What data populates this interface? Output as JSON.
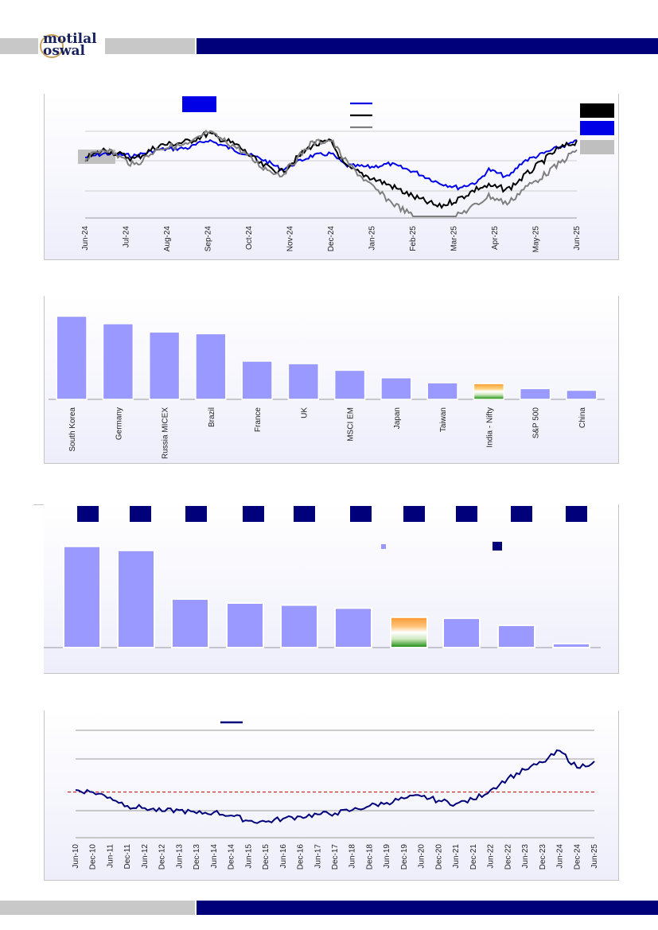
{
  "brand": {
    "logo_line1": "motilal",
    "logo_line2": "oswal",
    "primary_color": "#00007a",
    "grey": "#c8c8c8"
  },
  "charts": {
    "line1": {
      "type": "line",
      "x_ticks": [
        "Jun-24",
        "Jul-24",
        "Aug-24",
        "Sep-24",
        "Oct-24",
        "Nov-24",
        "Dec-24",
        "Jan-25",
        "Feb-25",
        "Mar-25",
        "Apr-25",
        "May-25",
        "Jun-25"
      ],
      "colors": {
        "s1": "#0000e6",
        "s2": "#000000",
        "s3": "#7f7f7f"
      }
    },
    "bars1": {
      "type": "bar",
      "categories": [
        "South Korea",
        "Germany",
        "Russia MICEX",
        "Brazil",
        "France",
        "UK",
        "MSCI EM",
        "Japan",
        "Taiwan",
        "India - Nifty",
        "S&P 500",
        "China"
      ],
      "values": [
        100,
        91,
        81,
        79,
        46,
        43,
        35,
        26,
        20,
        19,
        13,
        11
      ],
      "ylim": [
        0,
        110
      ],
      "highlight": "India - Nifty"
    },
    "bars2": {
      "type": "bar",
      "values": [
        100,
        96,
        48,
        44,
        42,
        39,
        30,
        29,
        22,
        4
      ],
      "ylim": [
        0,
        110
      ],
      "highlight_index": 6,
      "bar_color": "#9999ff"
    },
    "line2": {
      "type": "line",
      "x_ticks": [
        "Jun-10",
        "Dec-10",
        "Jun-11",
        "Dec-11",
        "Jun-12",
        "Dec-12",
        "Jun-13",
        "Dec-13",
        "Jun-14",
        "Dec-14",
        "Jun-15",
        "Dec-15",
        "Jun-16",
        "Dec-16",
        "Jun-17",
        "Dec-17",
        "Jun-18",
        "Dec-18",
        "Jun-19",
        "Dec-19",
        "Jun-20",
        "Dec-20",
        "Jun-21",
        "Dec-21",
        "Jun-22",
        "Dec-22",
        "Jun-23",
        "Dec-23",
        "Jun-24",
        "Dec-24",
        "Jun-25"
      ],
      "values": [
        105,
        103,
        98,
        90,
        88,
        85,
        86,
        83,
        84,
        81,
        76,
        75,
        78,
        80,
        82,
        83,
        86,
        90,
        93,
        97,
        99,
        95,
        92,
        96,
        105,
        116,
        124,
        131,
        142,
        126,
        132
      ],
      "ylim": [
        60,
        165
      ],
      "avg": 103,
      "line_color": "#00007a",
      "avg_color": "#c00000"
    }
  }
}
